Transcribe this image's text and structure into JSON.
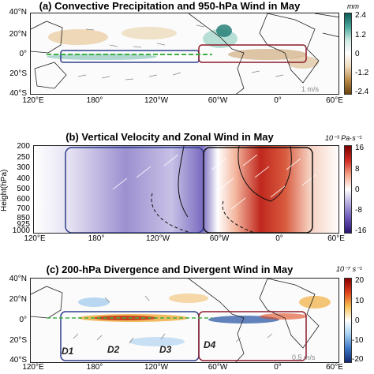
{
  "chart_data": [
    {
      "type": "heatmap",
      "title": "(a) Convective Precipitation and 950-hPa Wind in May",
      "yticks": [
        "40°N",
        "20°N",
        "0°",
        "20°S",
        "40°S"
      ],
      "xticks": [
        "120°E",
        "180°",
        "120°W",
        "60°W",
        "0°",
        "60°E"
      ],
      "colorbar_unit": "mm",
      "colorbar_ticks": [
        "2.4",
        "1.2",
        "0",
        "-1.2",
        "-2.4"
      ],
      "vector_scale": "1 m/s",
      "colors": {
        "low": "#8a5a1a",
        "mid": "#ffffff",
        "high": "#1b7a72",
        "box_blue": "#2c3e8c",
        "box_red": "#8b1a2a",
        "jet": "#3cb043"
      }
    },
    {
      "type": "heatmap",
      "title": "(b) Vertical Velocity and Zonal Wind in May",
      "ylabel": "Height(hPa)",
      "yticks": [
        "200",
        "250",
        "300",
        "400",
        "500",
        "600",
        "700",
        "850",
        "925",
        "1000"
      ],
      "xticks": [
        "120°E",
        "180°",
        "120°W",
        "60°W",
        "0°",
        "60°E"
      ],
      "colorbar_unit": "10⁻³ Pa·s⁻¹",
      "colorbar_ticks": [
        "16",
        "8",
        "0",
        "-8",
        "-16"
      ],
      "colors": {
        "low": "#2e1f7a",
        "mid": "#ffffff",
        "high": "#8b0000"
      }
    },
    {
      "type": "heatmap",
      "title": "(c) 200-hPa Divergence and Divergent Wind in May",
      "yticks": [
        "40°N",
        "20°N",
        "0°",
        "20°S",
        "40°S"
      ],
      "xticks": [
        "120°E",
        "180°",
        "120°W",
        "60°W",
        "0°",
        "60°E"
      ],
      "colorbar_unit": "10⁻⁷ s⁻¹",
      "colorbar_ticks": [
        "20",
        "10",
        "0",
        "-10",
        "-20"
      ],
      "vector_scale": "0.5 m/s",
      "region_labels": [
        "D1",
        "D2",
        "D3",
        "D4"
      ],
      "colors": {
        "low": "#1f4fa0",
        "mid": "#ffffff",
        "high": "#b01010"
      }
    }
  ]
}
